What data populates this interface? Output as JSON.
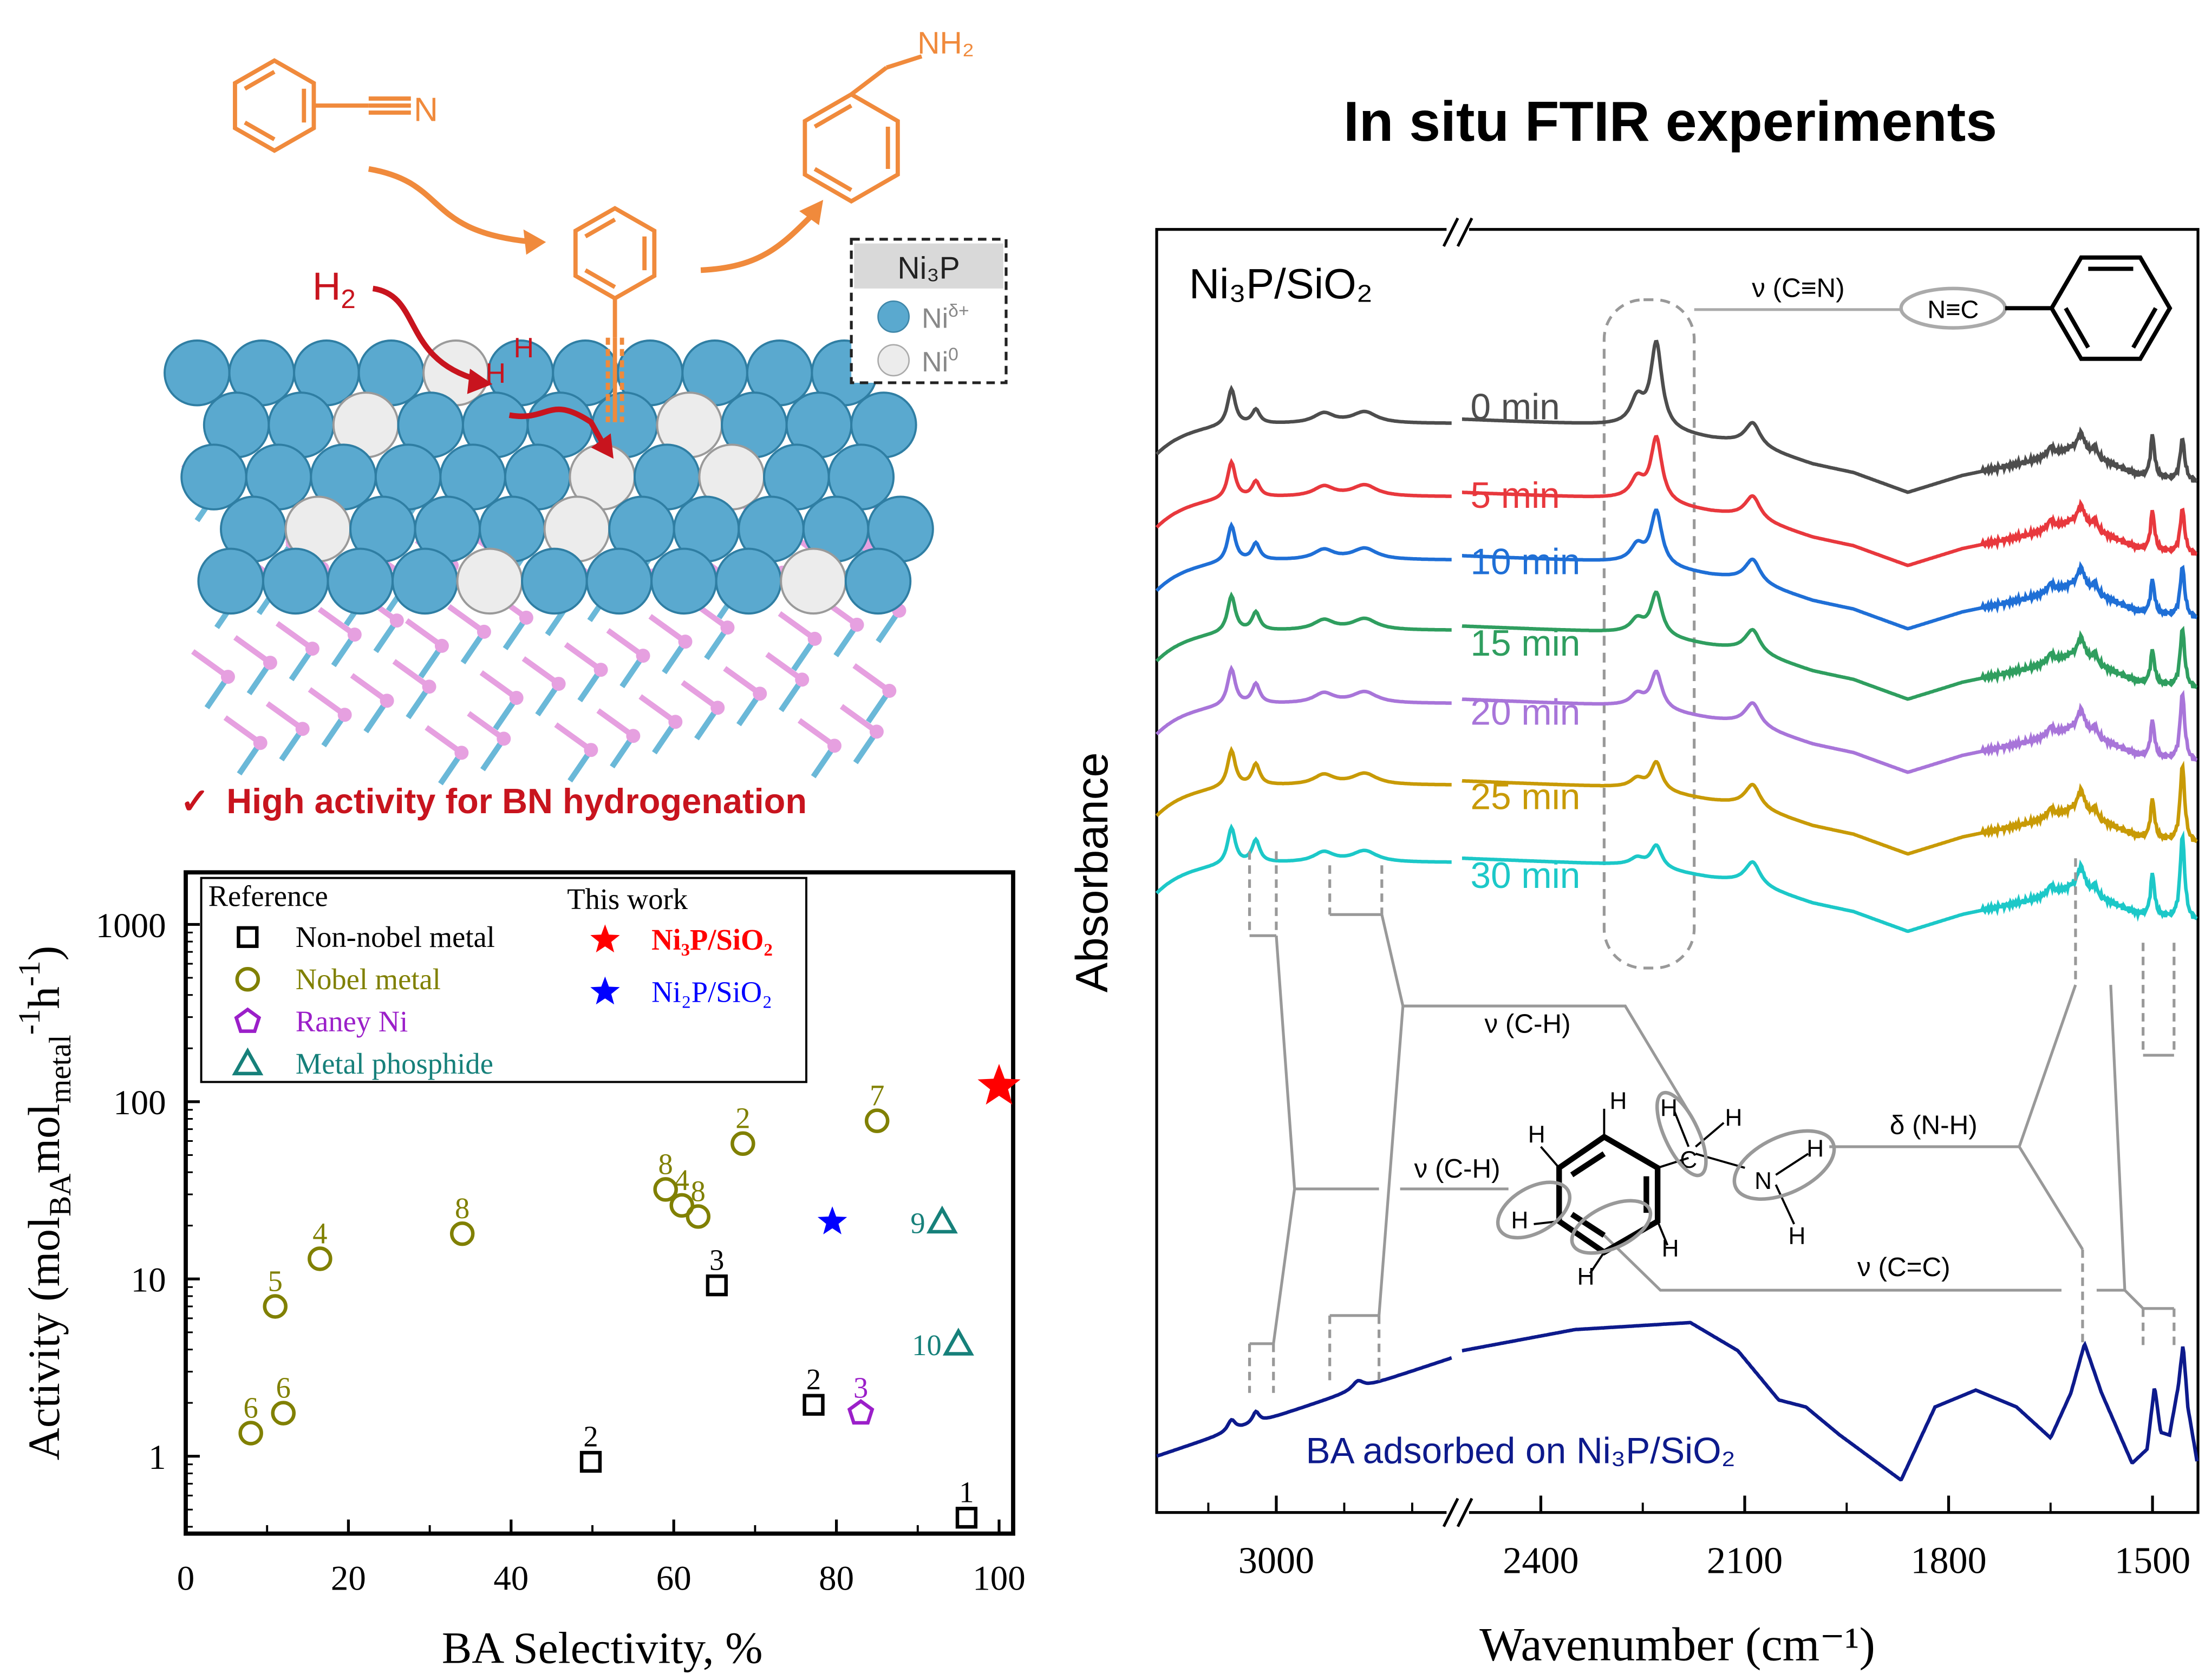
{
  "scheme": {
    "reactant_label": "N",
    "product_label": "NH₂",
    "h2_label": "H",
    "h2_sub": "2",
    "h_atom_label": "H",
    "legend": {
      "title": "Ni₃P",
      "items": [
        {
          "label": "Ni",
          "sup": "δ+",
          "color": "#5aa9cf"
        },
        {
          "label": "Ni",
          "sup": "0",
          "color": "#e8e8e8"
        }
      ]
    },
    "highlight_check": "✓",
    "highlight_text": "High activity  for BN hydrogenation",
    "colors": {
      "molecule": "#f08a3c",
      "hydrogen": "#c8141e",
      "ni_delta": "#5aa9cf",
      "ni0": "#e8e8e8",
      "phosphorus": "#e6a0e0"
    }
  },
  "scatter": {
    "xlabel": "BA Selectivity, %",
    "ylabel": {
      "pre": "Activity (mol",
      "s1": "BA",
      "mid": "mol",
      "s2": "metal",
      "e1": "-1",
      "h": "h",
      "e2": "-1",
      "post": ")"
    },
    "legend": {
      "reference_title": "Reference",
      "this_work_title": "This work",
      "reference": [
        {
          "key": "nonnoble",
          "label": "Non-nobel metal",
          "color": "#000000",
          "marker": "square"
        },
        {
          "key": "noble",
          "label": "Nobel metal",
          "color": "#808000",
          "marker": "circle"
        },
        {
          "key": "raney",
          "label": "Raney Ni",
          "color": "#9b1fc9",
          "marker": "pentagon"
        },
        {
          "key": "phosphide",
          "label": "Metal phosphide",
          "color": "#16807a",
          "marker": "triangle"
        }
      ],
      "this_work": [
        {
          "key": "ni3p",
          "label": "Ni₃P/SiO₂",
          "color": "#ff0000",
          "marker": "star"
        },
        {
          "key": "ni2p",
          "label": "Ni₂P/SiO₂",
          "color": "#0000ff",
          "marker": "star"
        }
      ]
    }
  },
  "chart_data": [
    {
      "type": "scatter",
      "xlabel": "BA Selectivity, %",
      "ylabel": "Activity (molBA molmetal-1 h-1)",
      "xlim": [
        0,
        102
      ],
      "ylim": [
        0.37,
        1950
      ],
      "yscale": "log",
      "xticks": [
        "0",
        "20",
        "40",
        "60",
        "80",
        "100"
      ],
      "yticks": [
        "1",
        "10",
        "100",
        "1000"
      ],
      "legend_position": "top-left",
      "series": [
        {
          "name": "Non-nobel metal",
          "key": "nonnoble",
          "points": [
            {
              "x": 49.8,
              "y": 0.93,
              "label": "2"
            },
            {
              "x": 65.3,
              "y": 9.2,
              "label": "3"
            },
            {
              "x": 77.2,
              "y": 1.95,
              "label": "2"
            },
            {
              "x": 96,
              "y": 0.45,
              "label": "1"
            }
          ]
        },
        {
          "name": "Nobel metal",
          "key": "noble",
          "points": [
            {
              "x": 8,
              "y": 1.35,
              "label": "6"
            },
            {
              "x": 12,
              "y": 1.75,
              "label": "6"
            },
            {
              "x": 11,
              "y": 7,
              "label": "5"
            },
            {
              "x": 16.5,
              "y": 13,
              "label": "4"
            },
            {
              "x": 34,
              "y": 18,
              "label": "8"
            },
            {
              "x": 59,
              "y": 32,
              "label": "8"
            },
            {
              "x": 61,
              "y": 26,
              "label": "4"
            },
            {
              "x": 63,
              "y": 22.5,
              "label": "8"
            },
            {
              "x": 68.5,
              "y": 58,
              "label": "2"
            },
            {
              "x": 85,
              "y": 78,
              "label": "7"
            }
          ]
        },
        {
          "name": "Raney Ni",
          "key": "raney",
          "points": [
            {
              "x": 83,
              "y": 1.75,
              "label": "3"
            }
          ]
        },
        {
          "name": "Metal phosphide",
          "key": "phosphide",
          "points": [
            {
              "x": 93,
              "y": 21,
              "label": "9"
            },
            {
              "x": 95,
              "y": 4.3,
              "label": "10"
            }
          ]
        },
        {
          "name": "Ni₃P/SiO₂",
          "key": "ni3p",
          "points": [
            {
              "x": 100,
              "y": 122
            }
          ]
        },
        {
          "name": "Ni₂P/SiO₂",
          "key": "ni2p",
          "points": [
            {
              "x": 79.5,
              "y": 21
            }
          ]
        }
      ]
    },
    {
      "type": "line",
      "title": "In situ FTIR experiments",
      "panel_label": "Ni₃P/SiO₂",
      "xlabel": "Wavenumber (cm⁻¹)",
      "ylabel": "Absorbance",
      "x_axis": "reversed, broken",
      "xlim_segments": [
        [
          3176,
          2741
        ],
        [
          2516,
          1434
        ]
      ],
      "xticks": [
        "3000",
        "2400",
        "2100",
        "1800",
        "1500"
      ],
      "series": [
        {
          "name": "0 min",
          "color": "#4d4d4d",
          "cn_2230": 60,
          "p1500": 30,
          "p1456": 30
        },
        {
          "name": "5 min",
          "color": "#e8383d",
          "cn_2230": 45,
          "p1500": 28,
          "p1456": 32
        },
        {
          "name": "10 min",
          "color": "#1f6fd6",
          "cn_2230": 38,
          "p1500": 24,
          "p1456": 36
        },
        {
          "name": "15 min",
          "color": "#2f9e5f",
          "cn_2230": 30,
          "p1500": 24,
          "p1456": 42
        },
        {
          "name": "20 min",
          "color": "#a875d9",
          "cn_2230": 26,
          "p1500": 26,
          "p1456": 48
        },
        {
          "name": "25 min",
          "color": "#c89a06",
          "cn_2230": 20,
          "p1500": 28,
          "p1456": 55
        },
        {
          "name": "30 min",
          "color": "#1cc8c8",
          "cn_2230": 16,
          "p1500": 30,
          "p1456": 60
        },
        {
          "name": "BA adsorbed on Ni₃P/SiO₂",
          "color": "#0d1a8c"
        }
      ],
      "annotations": {
        "cn_stretch": "ν (C≡N)",
        "ch_stretch_aliphatic": "ν (C-H)",
        "ch_stretch_aromatic": "ν (C-H)",
        "nh_bend": "δ (N-H)",
        "cc_stretch": "ν (C=C)",
        "nitrile_group": "N≡C"
      }
    }
  ]
}
